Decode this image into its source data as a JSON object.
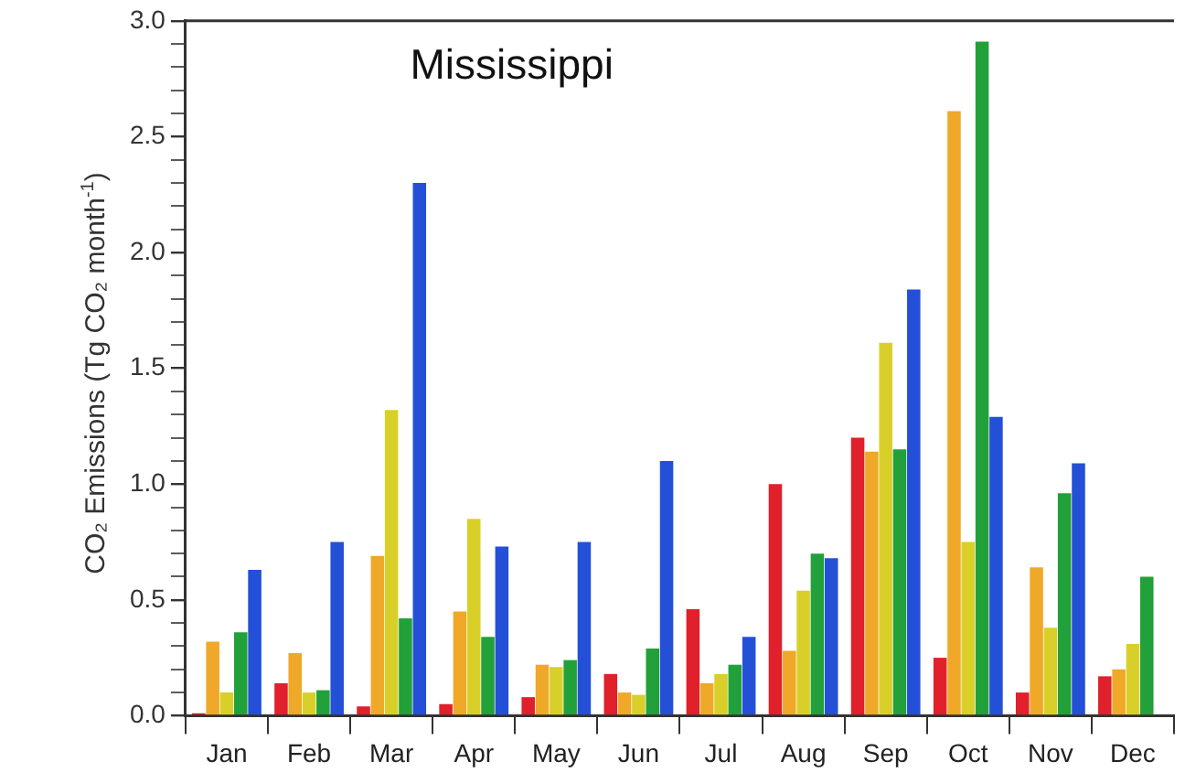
{
  "chart_data": {
    "type": "bar",
    "title": "Mississippi",
    "ylabel": "CO₂ Emissions (Tg CO₂ month$^{-1}$)",
    "categories": [
      "Jan",
      "Feb",
      "Mar",
      "Apr",
      "May",
      "Jun",
      "Jul",
      "Aug",
      "Sep",
      "Oct",
      "Nov",
      "Dec"
    ],
    "series": [
      {
        "color": "#e0202a",
        "values": [
          0.01,
          0.14,
          0.04,
          0.05,
          0.08,
          0.18,
          0.46,
          1.0,
          1.2,
          0.25,
          0.1,
          0.17
        ]
      },
      {
        "color": "#f0a828",
        "values": [
          0.32,
          0.27,
          0.69,
          0.45,
          0.22,
          0.1,
          0.14,
          0.28,
          1.14,
          2.61,
          0.64,
          0.2
        ]
      },
      {
        "color": "#d8d028",
        "values": [
          0.1,
          0.1,
          1.32,
          0.85,
          0.21,
          0.09,
          0.18,
          0.54,
          1.61,
          0.75,
          0.38,
          0.31
        ]
      },
      {
        "color": "#22a03a",
        "values": [
          0.36,
          0.11,
          0.42,
          0.34,
          0.24,
          0.29,
          0.22,
          0.7,
          1.15,
          2.91,
          0.96,
          0.6
        ]
      },
      {
        "color": "#2450d8",
        "values": [
          0.63,
          0.75,
          2.3,
          0.73,
          0.75,
          1.1,
          0.34,
          0.68,
          1.84,
          1.29,
          1.09,
          null
        ]
      }
    ],
    "ylim": [
      0,
      3.0
    ],
    "yticks": [
      {
        "value": 0,
        "label": "0.0"
      },
      {
        "value": 0.1,
        "label": null
      },
      {
        "value": 0.2,
        "label": null
      },
      {
        "value": 0.3,
        "label": null
      },
      {
        "value": 0.4,
        "label": null
      },
      0.5,
      {
        "value": 0.6,
        "label": null
      },
      {
        "value": 0.7,
        "label": null
      },
      {
        "value": 0.8,
        "label": null
      },
      {
        "value": 0.9,
        "label": null
      },
      {
        "value": 1.0,
        "label": "1.0"
      },
      {
        "value": 1.1,
        "label": null
      },
      {
        "value": 1.2,
        "label": null
      },
      {
        "value": 1.3,
        "label": null
      },
      {
        "value": 1.4,
        "label": null
      },
      1.5,
      {
        "value": 1.6,
        "label": null
      },
      {
        "value": 1.7,
        "label": null
      },
      {
        "value": 1.8,
        "label": null
      },
      {
        "value": 1.9,
        "label": null
      },
      {
        "value": 2.0,
        "label": "2.0"
      },
      {
        "value": 2.1,
        "label": null
      },
      {
        "value": 2.2,
        "label": null
      },
      {
        "value": 2.3,
        "label": null
      },
      {
        "value": 2.4,
        "label": null
      },
      2.5,
      {
        "value": 2.6,
        "label": null
      },
      {
        "value": 2.7,
        "label": null
      },
      {
        "value": 2.8,
        "label": null
      },
      {
        "value": 2.9,
        "label": null
      },
      {
        "value": 3.0,
        "label": "3.0"
      }
    ]
  }
}
